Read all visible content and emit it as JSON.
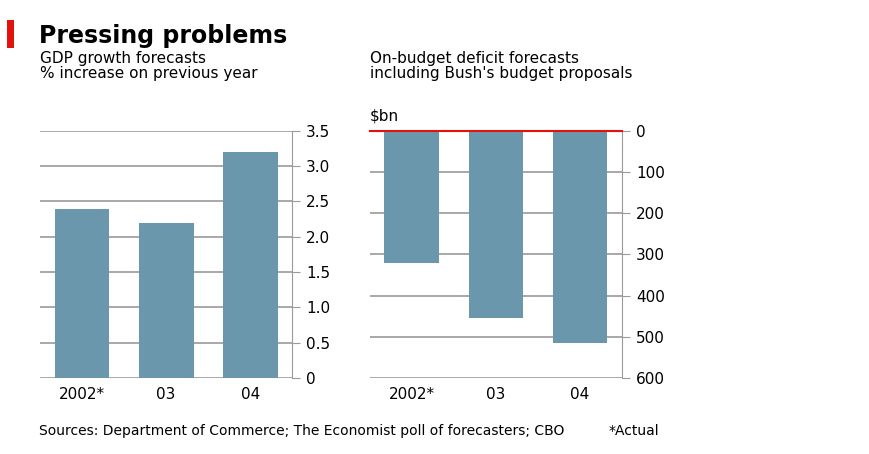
{
  "title": "Pressing problems",
  "notes": [
    "Sources: Department of Commerce; The Economist poll of forecasters; CBO",
    "*Actual"
  ],
  "chart_data": [
    {
      "type": "bar",
      "title": "GDP growth forecasts",
      "subtitle": "% increase on previous year",
      "categories": [
        "2002*",
        "03",
        "04"
      ],
      "values": [
        2.4,
        2.2,
        3.2
      ],
      "color": "#6b97ad",
      "ylim": [
        0,
        3.5
      ],
      "yticks": [
        0,
        {
          "value": 0.5,
          "label": "0.5"
        },
        {
          "value": 1,
          "label": "1.0"
        },
        {
          "value": 1.5,
          "label": "1.5"
        },
        {
          "value": 2,
          "label": "2.0"
        },
        {
          "value": 2.5,
          "label": "2.5"
        },
        {
          "value": 3,
          "label": "3.0"
        },
        3.5
      ],
      "grid": true
    },
    {
      "type": "bar",
      "title": "On-budget deficit forecasts",
      "subtitle": "including Bush's budget proposals",
      "ylabel": "$bn",
      "categories": [
        "2002*",
        "03",
        "04"
      ],
      "values": [
        320,
        455,
        515
      ],
      "color": "#6b97ad",
      "ylim": [
        600,
        0
      ],
      "yticks": [
        0,
        100,
        200,
        300,
        400,
        500,
        600
      ],
      "grid": true
    }
  ]
}
